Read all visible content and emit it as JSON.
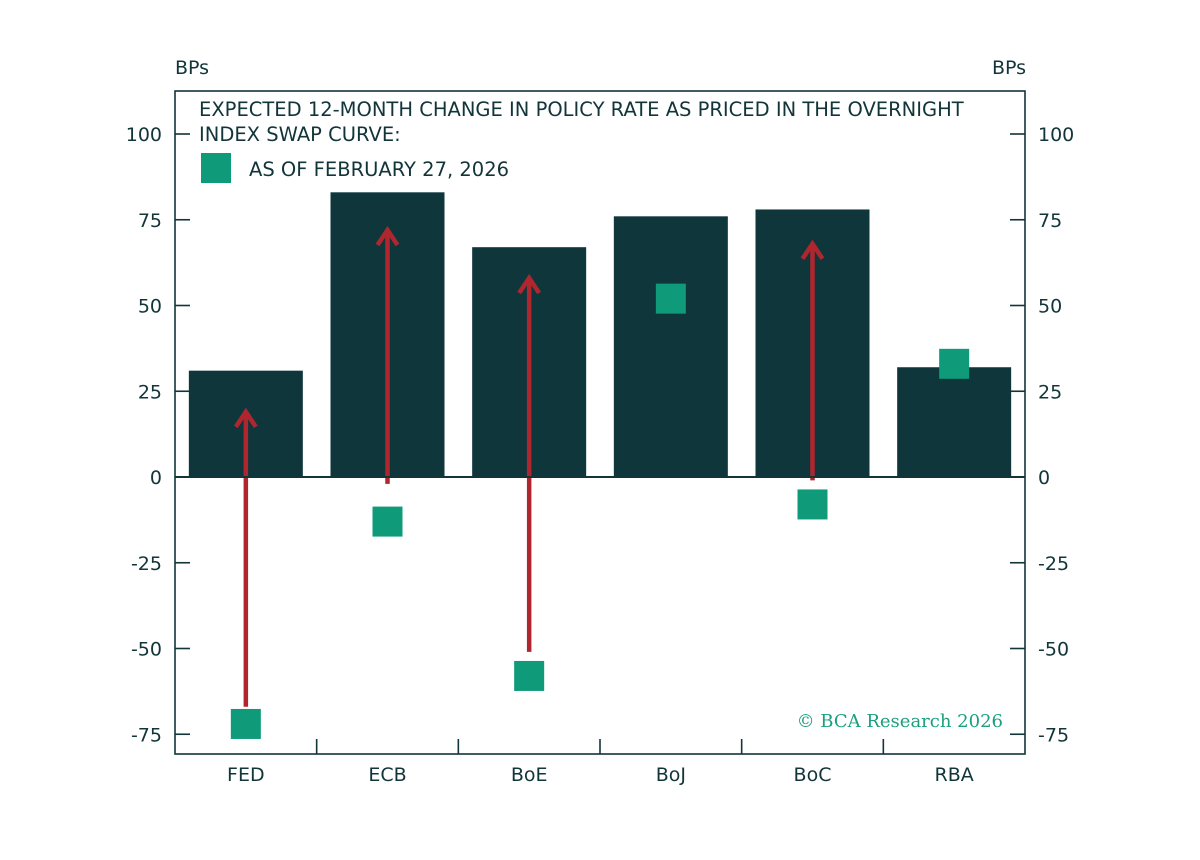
{
  "chart_data": {
    "type": "bar",
    "title_lines": [
      "EXPECTED 12-MONTH CHANGE IN POLICY RATE AS PRICED IN THE OVERNIGHT",
      "INDEX SWAP CURVE:"
    ],
    "y_unit_left": "BPs",
    "y_unit_right": "BPs",
    "ylim": [
      -75,
      100
    ],
    "yticks": [
      100,
      75,
      50,
      25,
      0,
      -25,
      -50,
      -75
    ],
    "categories": [
      "FED",
      "ECB",
      "BoE",
      "BoJ",
      "BoC",
      "RBA"
    ],
    "series": [
      {
        "kind": "bar",
        "values": [
          31,
          83,
          67,
          76,
          78,
          32
        ]
      },
      {
        "kind": "marker",
        "name": "AS OF FEBRUARY 27, 2026",
        "values": [
          -72,
          -13,
          -58,
          52,
          -8,
          33
        ]
      }
    ],
    "arrows": [
      {
        "category": "FED",
        "from": -67,
        "to": 19
      },
      {
        "category": "ECB",
        "from": -2,
        "to": 72
      },
      {
        "category": "BoE",
        "from": -51,
        "to": 58
      },
      {
        "category": "BoC",
        "from": -1,
        "to": 68
      }
    ],
    "legend_position": "top-left",
    "grid": false,
    "credit": "© BCA Research 2026",
    "colors": {
      "bar": "#0f363b",
      "marker": "#0f9a7a",
      "arrow": "#b0262e",
      "axis": "#12353a",
      "credit": "#1aa07e"
    }
  }
}
